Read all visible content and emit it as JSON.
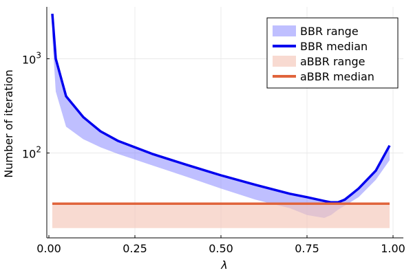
{
  "chart_data": {
    "type": "area",
    "xlabel": "λ",
    "ylabel": "Number of iteration",
    "xlim": [
      0.0,
      1.0
    ],
    "ylim_log10": [
      1.1,
      3.55
    ],
    "y_scale": "log10",
    "x_ticks": [
      {
        "value": 0.0,
        "label": "0.00"
      },
      {
        "value": 0.25,
        "label": "0.25"
      },
      {
        "value": 0.5,
        "label": "0.50"
      },
      {
        "value": 0.75,
        "label": "0.75"
      },
      {
        "value": 1.0,
        "label": "1.00"
      }
    ],
    "y_ticks": [
      {
        "value": 1000,
        "base": "10",
        "exp": "3"
      },
      {
        "value": 100,
        "base": "10",
        "exp": "2"
      }
    ],
    "grid": true,
    "legend_position": "top-right",
    "series": [
      {
        "name": "BBR range",
        "kind": "band",
        "color": "#8080ff",
        "x": [
          0.01,
          0.02,
          0.05,
          0.1,
          0.15,
          0.2,
          0.3,
          0.4,
          0.5,
          0.6,
          0.7,
          0.75,
          0.8,
          0.82,
          0.84,
          0.9,
          0.95,
          0.99
        ],
        "lower": [
          1700,
          450,
          190,
          140,
          115,
          98,
          74,
          56,
          42,
          32,
          26,
          22,
          20.5,
          22,
          25,
          34,
          52,
          84
        ],
        "upper": [
          3000,
          1000,
          400,
          240,
          170,
          135,
          98,
          75,
          58,
          46,
          37,
          34,
          31,
          30,
          30,
          42,
          65,
          120
        ]
      },
      {
        "name": "BBR median",
        "kind": "line",
        "color": "#0000ee",
        "x": [
          0.01,
          0.02,
          0.05,
          0.1,
          0.15,
          0.2,
          0.3,
          0.4,
          0.5,
          0.6,
          0.7,
          0.75,
          0.8,
          0.82,
          0.84,
          0.86,
          0.9,
          0.95,
          0.99
        ],
        "y": [
          3000,
          1000,
          400,
          240,
          170,
          135,
          98,
          75,
          58,
          46,
          37,
          34,
          31,
          30,
          30,
          32,
          42,
          65,
          120
        ]
      },
      {
        "name": "aBBR range",
        "kind": "band",
        "color": "#f5c6b8",
        "x": [
          0.01,
          0.99
        ],
        "lower": [
          16,
          16
        ],
        "upper": [
          29,
          29
        ]
      },
      {
        "name": "aBBR median",
        "kind": "line",
        "color": "#e0643c",
        "x": [
          0.01,
          0.99
        ],
        "y": [
          29,
          29
        ]
      }
    ]
  }
}
